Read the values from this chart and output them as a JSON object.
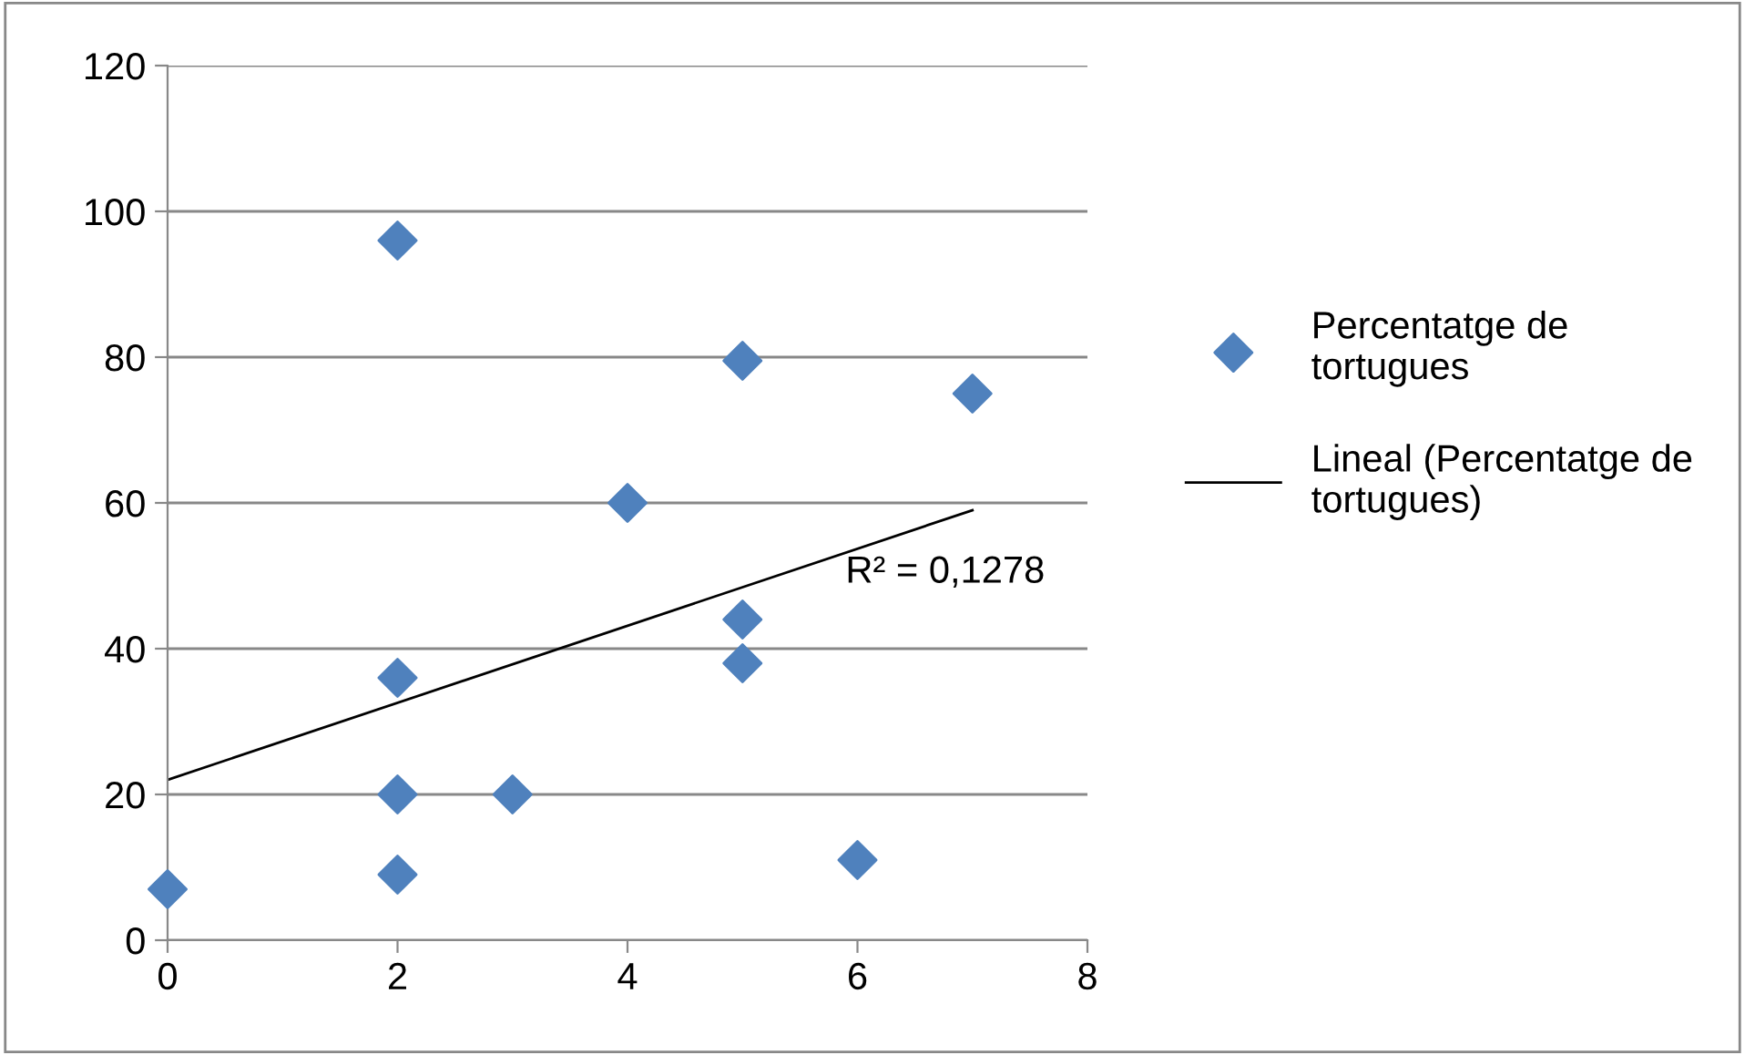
{
  "chart_data": {
    "type": "scatter",
    "xlim": [
      0,
      8
    ],
    "xticks": [
      0,
      2,
      4,
      6,
      8
    ],
    "ylim": [
      0,
      120
    ],
    "yticks": [
      0,
      20,
      40,
      60,
      80,
      100,
      120
    ],
    "grid": "y",
    "legend": "right",
    "series": [
      {
        "name": "Percentatge de tortugues",
        "marker": "diamond",
        "color": "#4f81bd",
        "x": [
          0,
          2,
          2,
          2,
          2,
          3,
          4,
          5,
          5,
          5,
          6,
          7
        ],
        "values": [
          7,
          96,
          36,
          20,
          9,
          20,
          60,
          79.5,
          44,
          38,
          11,
          75
        ]
      },
      {
        "name": "Lineal (Percentatge de tortugues)",
        "type": "line",
        "marker": "none",
        "line_style": "solid",
        "color": "#000000",
        "x": [
          0,
          7
        ],
        "values": [
          22,
          59
        ]
      }
    ],
    "annotations": [
      "R² = 0,1278"
    ]
  }
}
